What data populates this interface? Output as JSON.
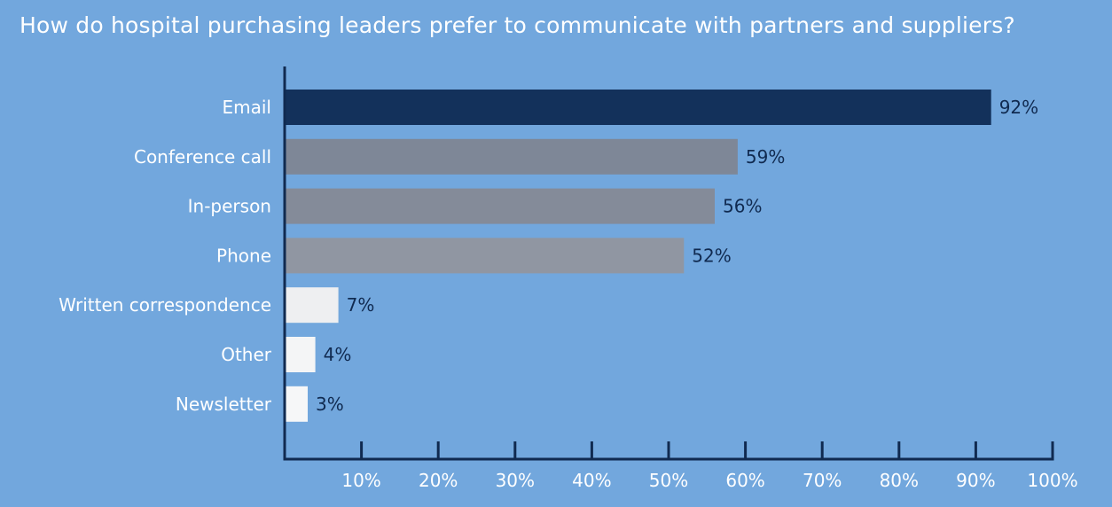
{
  "chart_data": {
    "type": "bar",
    "orientation": "horizontal",
    "title": "How do hospital purchasing leaders prefer to communicate with partners and suppliers?",
    "categories": [
      "Email",
      "Conference call",
      "In-person",
      "Phone",
      "Written correspondence",
      "Other",
      "Newsletter"
    ],
    "values": [
      92,
      59,
      56,
      52,
      7,
      4,
      3
    ],
    "value_labels": [
      "92%",
      "59%",
      "56%",
      "52%",
      "7%",
      "4%",
      "3%"
    ],
    "bar_colors": [
      "#13315b",
      "#7e8797",
      "#848b99",
      "#9096a2",
      "#eeeff1",
      "#f4f5f6",
      "#f6f7f8"
    ],
    "x_ticks": [
      10,
      20,
      30,
      40,
      50,
      60,
      70,
      80,
      90,
      100
    ],
    "x_tick_labels": [
      "10%",
      "20%",
      "30%",
      "40%",
      "50%",
      "60%",
      "70%",
      "80%",
      "90%",
      "100%"
    ],
    "xlim": [
      0,
      100
    ],
    "xlabel": "",
    "ylabel": "",
    "grid": false,
    "legend": "none"
  },
  "colors": {
    "background": "#72a7dd",
    "axis": "#102a50",
    "text_light": "#ffffff",
    "value_text": "#102a50"
  }
}
